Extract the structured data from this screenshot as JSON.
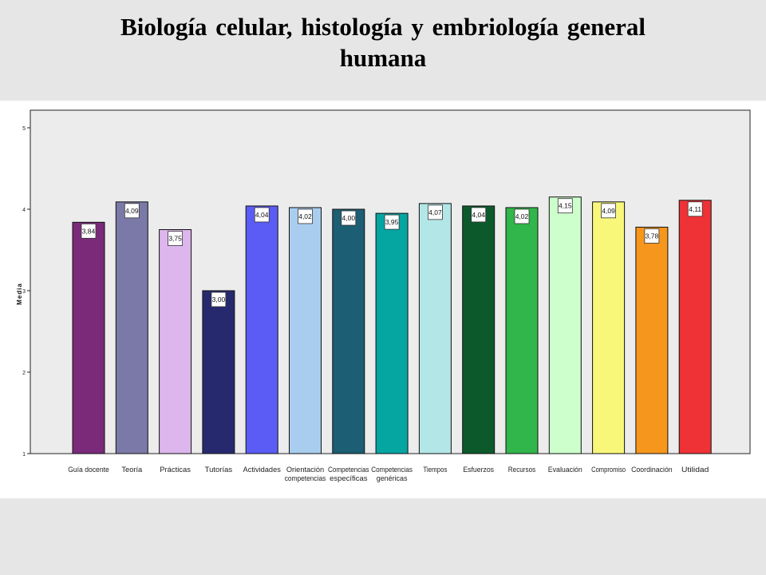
{
  "slide": {
    "title_line1": "Biología celular, histología y embriología general",
    "title_line2": "humana"
  },
  "chart_data": {
    "type": "bar",
    "title": "",
    "xlabel": "",
    "ylabel": "Media",
    "ylim": [
      1,
      5
    ],
    "yticks": [
      "1",
      "2",
      "3",
      "4",
      "5"
    ],
    "grid": false,
    "legend": "none",
    "categories": [
      [
        "Guía docente"
      ],
      [
        "Teoría"
      ],
      [
        "Prácticas"
      ],
      [
        "Tutorías"
      ],
      [
        "Actividades"
      ],
      [
        "Orientación",
        "competencias"
      ],
      [
        "Competencias",
        "específicas"
      ],
      [
        "Competencias",
        "genéricas"
      ],
      [
        "Tiempos"
      ],
      [
        "Esfuerzos"
      ],
      [
        "Recursos"
      ],
      [
        "Evaluación"
      ],
      [
        "Compromiso"
      ],
      [
        "Coordinación"
      ],
      [
        "Utilidad"
      ]
    ],
    "values": [
      3.84,
      4.09,
      3.75,
      3.0,
      4.04,
      4.02,
      4.0,
      3.95,
      4.07,
      4.04,
      4.02,
      4.15,
      4.09,
      3.78,
      4.11
    ],
    "value_labels": [
      "3,84",
      "4,09",
      "3,75",
      "3,00",
      "4,04",
      "4,02",
      "4,00",
      "3,95",
      "4,07",
      "4,04",
      "4,02",
      "4,15",
      "4,09",
      "3,78",
      "4,11"
    ],
    "colors": [
      "#7b2a7a",
      "#7b79a8",
      "#dcb6ec",
      "#27296f",
      "#5a5cf5",
      "#a9cdee",
      "#1c5e73",
      "#05a5a2",
      "#b3e6e6",
      "#0c5a2c",
      "#30b64a",
      "#ccffcc",
      "#f9f77a",
      "#f7961c",
      "#ee3236"
    ]
  }
}
